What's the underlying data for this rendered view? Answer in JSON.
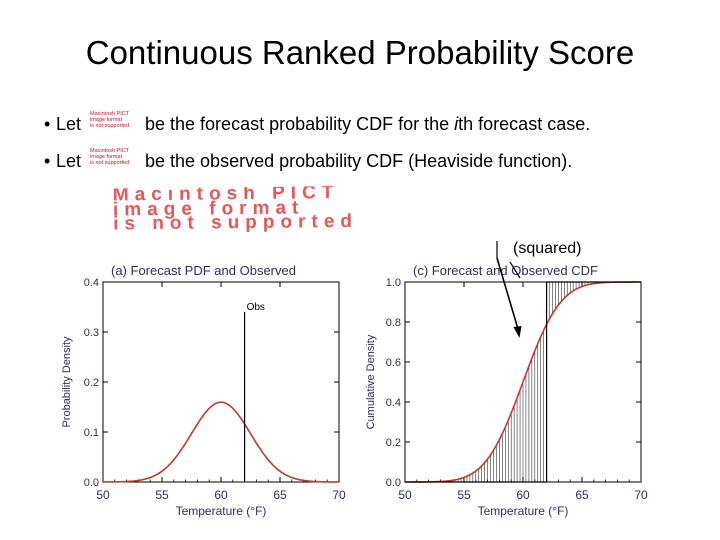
{
  "slide": {
    "title": "Continuous Ranked Probability Score",
    "bullets": [
      {
        "pre": "Let",
        "post_before_italic": "be the forecast probability CDF for the ",
        "italic": "i",
        "post_after_italic": "th forecast case."
      },
      {
        "pre": "Let",
        "post_before_italic": "be the observed probability CDF (Heaviside function).",
        "italic": "",
        "post_after_italic": ""
      }
    ],
    "pict_placeholder_small": [
      "Macintosh PICT",
      "image format",
      "is not supported"
    ],
    "pict_placeholder_large": [
      "Macintosh PICT",
      "image format",
      "is not supported"
    ],
    "annotation": "(squared)",
    "colors": {
      "curve": "#c0392b",
      "axis": "#000000",
      "pict_text": "#e23a3a",
      "axis_label": "#2c2c6a"
    }
  },
  "chart_data": [
    {
      "type": "line",
      "title": "(a) Forecast PDF and Observed",
      "xlabel": "Temperature (°F)",
      "ylabel": "Probability Density",
      "xlim": [
        50,
        70
      ],
      "ylim": [
        0,
        0.4
      ],
      "xticks": [
        50,
        55,
        60,
        65,
        70
      ],
      "yticks": [
        0.0,
        0.1,
        0.2,
        0.3,
        0.4
      ],
      "series": [
        {
          "name": "",
          "distribution": "normal",
          "mean": 60,
          "sd": 2.5,
          "color": "#c0392b"
        }
      ],
      "observation": {
        "x": 62,
        "height": 0.34,
        "label": "Obs"
      }
    },
    {
      "type": "line",
      "title": "(c) Forecast and Observed CDF",
      "xlabel": "Temperature (°F)",
      "ylabel": "Cumulative Density",
      "xlim": [
        50,
        70
      ],
      "ylim": [
        0,
        1.0
      ],
      "xticks": [
        50,
        55,
        60,
        65,
        70
      ],
      "yticks": [
        0.0,
        0.2,
        0.4,
        0.6,
        0.8,
        1.0
      ],
      "series": [
        {
          "name": "",
          "distribution": "normal-cdf",
          "mean": 60,
          "sd": 2.5,
          "color": "#c0392b"
        }
      ],
      "observation": {
        "x": 62,
        "type": "heaviside"
      },
      "shading": {
        "from": 53,
        "to": 70,
        "step": 0.25,
        "style": "vertical-lines"
      }
    }
  ]
}
